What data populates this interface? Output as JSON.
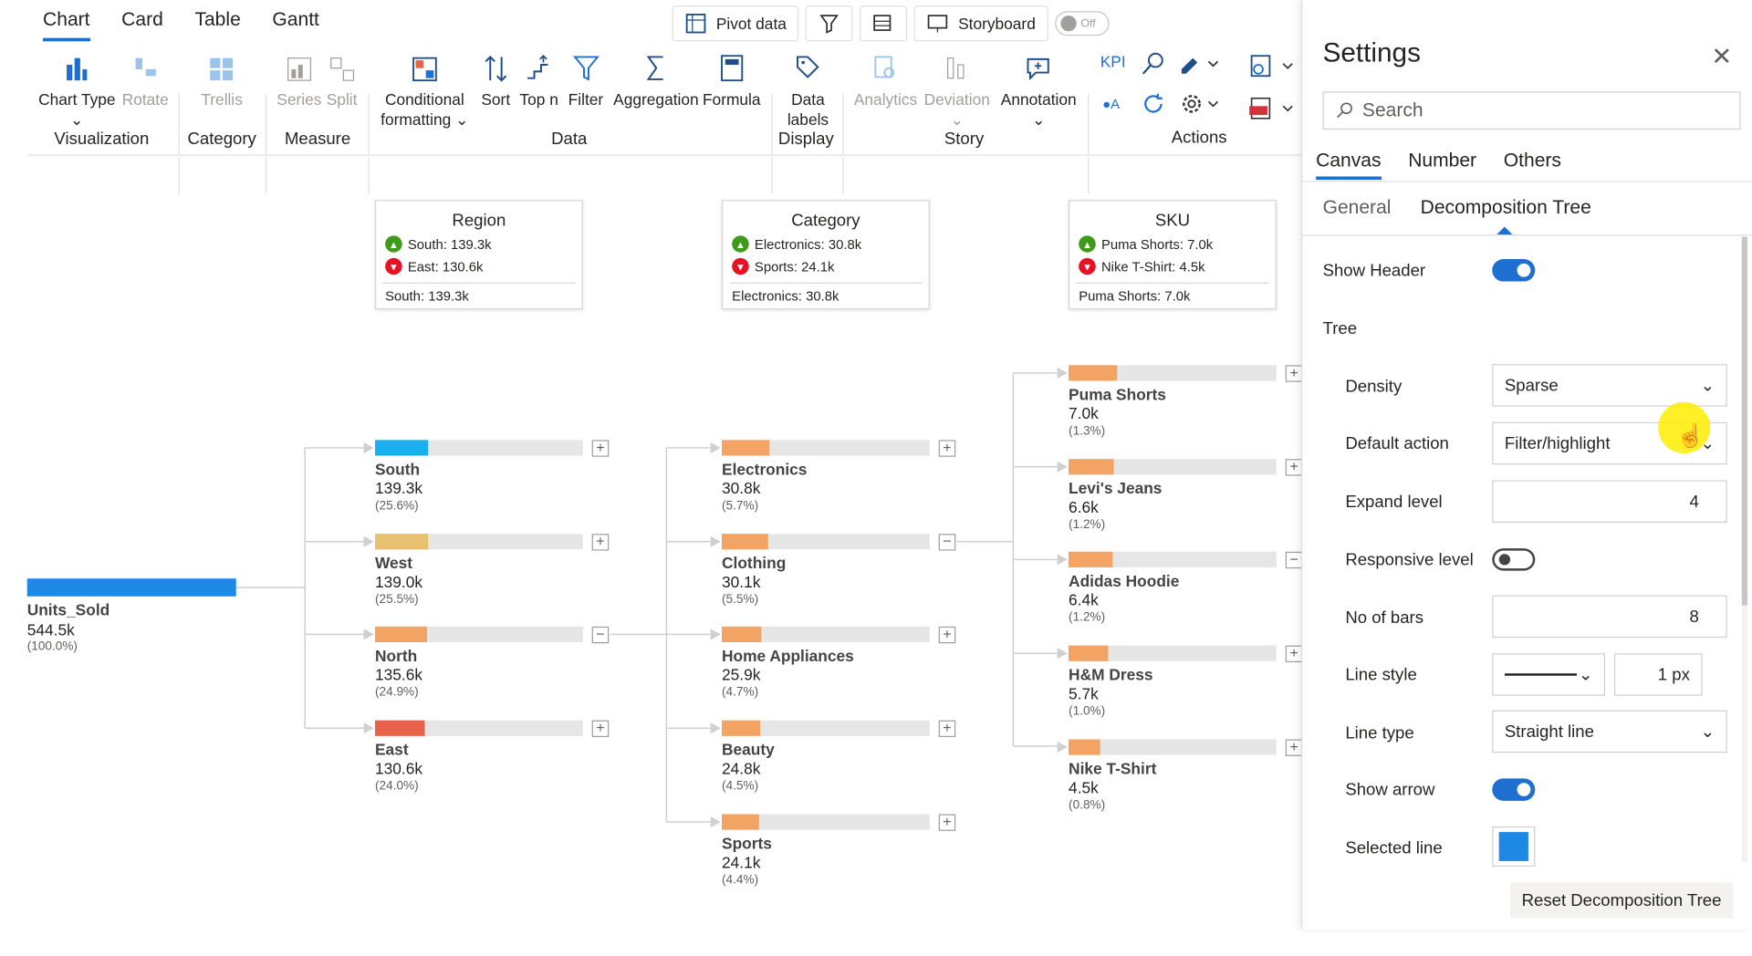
{
  "ribbon": {
    "tabs": [
      "Chart",
      "Card",
      "Table",
      "Gantt"
    ],
    "top_buttons": {
      "pivot": "Pivot data",
      "storyboard": "Storyboard",
      "toggle": "Off"
    },
    "buttons": {
      "chart_type": "Chart Type",
      "rotate": "Rotate",
      "trellis": "Trellis",
      "series": "Series",
      "split": "Split",
      "conditional": "Conditional",
      "formatting": "formatting",
      "sort": "Sort",
      "topn": "Top n",
      "filter": "Filter",
      "aggregation": "Aggregation",
      "formula": "Formula",
      "data": "Data",
      "labels": "labels",
      "analytics": "Analytics",
      "deviation": "Deviation",
      "annotation": "Annotation",
      "kpi": "KPI"
    },
    "groups": {
      "visualization": "Visualization",
      "category": "Category",
      "measure": "Measure",
      "data": "Data",
      "display": "Display",
      "story": "Story",
      "actions": "Actions"
    }
  },
  "headers": [
    {
      "title": "Region",
      "up": "South: 139.3k",
      "down": "East: 130.6k",
      "foot": "South: 139.3k"
    },
    {
      "title": "Category",
      "up": "Electronics: 30.8k",
      "down": "Sports: 24.1k",
      "foot": "Electronics: 30.8k"
    },
    {
      "title": "SKU",
      "up": "Puma Shorts: 7.0k",
      "down": "Nike T-Shirt: 4.5k",
      "foot": "Puma Shorts: 7.0k"
    }
  ],
  "root": {
    "label": "Units_Sold",
    "value": "544.5k",
    "pct": "(100.0%)"
  },
  "tree": {
    "region": [
      {
        "label": "South",
        "value": "139.3k",
        "pct": "(25.6%)",
        "share": 0.256,
        "color": "#1ab0f0",
        "exp": "+"
      },
      {
        "label": "West",
        "value": "139.0k",
        "pct": "(25.5%)",
        "share": 0.255,
        "color": "#e8c170",
        "exp": "+"
      },
      {
        "label": "North",
        "value": "135.6k",
        "pct": "(24.9%)",
        "share": 0.249,
        "color": "#f3a363",
        "exp": "−"
      },
      {
        "label": "East",
        "value": "130.6k",
        "pct": "(24.0%)",
        "share": 0.24,
        "color": "#e8624a",
        "exp": "+"
      }
    ],
    "category": [
      {
        "label": "Electronics",
        "value": "30.8k",
        "pct": "(5.7%)",
        "share": 0.227,
        "color": "#f3a363",
        "exp": "+"
      },
      {
        "label": "Clothing",
        "value": "30.1k",
        "pct": "(5.5%)",
        "share": 0.222,
        "color": "#f3a363",
        "exp": "−"
      },
      {
        "label": "Home Appliances",
        "value": "25.9k",
        "pct": "(4.7%)",
        "share": 0.191,
        "color": "#f3a363",
        "exp": "+"
      },
      {
        "label": "Beauty",
        "value": "24.8k",
        "pct": "(4.5%)",
        "share": 0.183,
        "color": "#f3a363",
        "exp": "+"
      },
      {
        "label": "Sports",
        "value": "24.1k",
        "pct": "(4.4%)",
        "share": 0.178,
        "color": "#f3a363",
        "exp": "+"
      }
    ],
    "sku": [
      {
        "label": "Puma Shorts",
        "value": "7.0k",
        "pct": "(1.3%)",
        "share": 0.233,
        "color": "#f3a363",
        "exp": "+"
      },
      {
        "label": "Levi's Jeans",
        "value": "6.6k",
        "pct": "(1.2%)",
        "share": 0.219,
        "color": "#f3a363",
        "exp": "+"
      },
      {
        "label": "Adidas Hoodie",
        "value": "6.4k",
        "pct": "(1.2%)",
        "share": 0.213,
        "color": "#f3a363",
        "exp": "−"
      },
      {
        "label": "H&M Dress",
        "value": "5.7k",
        "pct": "(1.0%)",
        "share": 0.189,
        "color": "#f3a363",
        "exp": "+"
      },
      {
        "label": "Nike T-Shirt",
        "value": "4.5k",
        "pct": "(0.8%)",
        "share": 0.15,
        "color": "#f3a363",
        "exp": "+"
      }
    ]
  },
  "settings": {
    "title": "Settings",
    "search_placeholder": "Search",
    "tabs": [
      "Canvas",
      "Number",
      "Others"
    ],
    "subtabs": [
      "General",
      "Decomposition Tree"
    ],
    "show_header": "Show Header",
    "tree_heading": "Tree",
    "density": {
      "label": "Density",
      "value": "Sparse"
    },
    "default_action": {
      "label": "Default action",
      "value": "Filter/highlight"
    },
    "expand_level": {
      "label": "Expand level",
      "value": "4"
    },
    "responsive_level": "Responsive level",
    "no_of_bars": {
      "label": "No of bars",
      "value": "8"
    },
    "line_style": {
      "label": "Line style",
      "width": "1 px"
    },
    "line_type": {
      "label": "Line type",
      "value": "Straight line"
    },
    "show_arrow": "Show arrow",
    "selected_line": {
      "label": "Selected line",
      "color": "#1e88e5"
    },
    "reset": "Reset Decomposition Tree"
  },
  "colors": {
    "accent": "#1f6fd1",
    "root_bar": "#1e88e5"
  }
}
